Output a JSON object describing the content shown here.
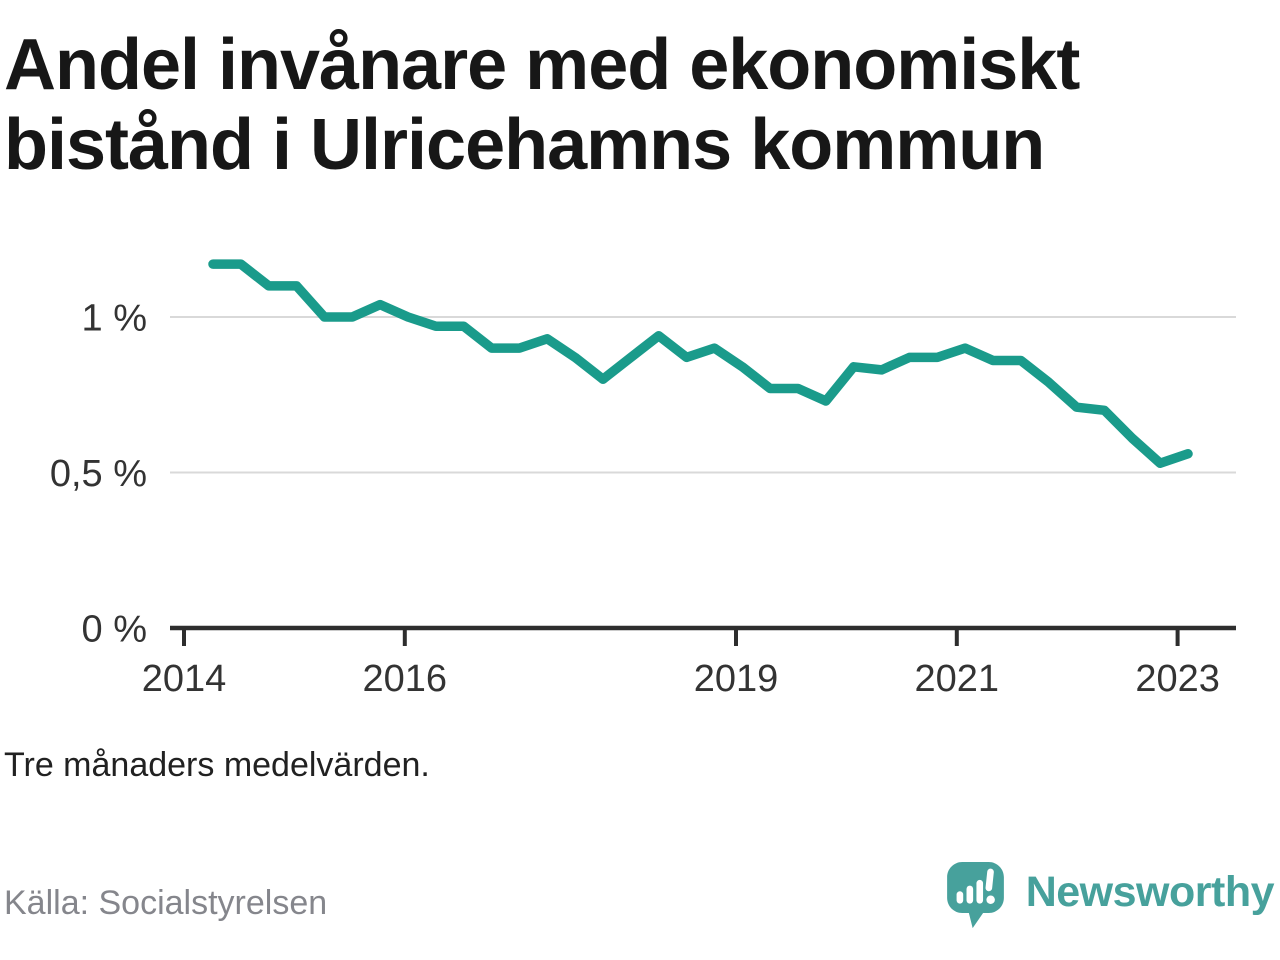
{
  "header": {
    "title": "Andel invånare med ekonomiskt bistånd i Ulricehamns kommun"
  },
  "chart_data": {
    "type": "line",
    "title": "Andel invånare med ekonomiskt bistånd i Ulricehamns kommun",
    "unit": "%",
    "grid": "horizontal",
    "legend": "none",
    "line_color": "#1a9b8b",
    "ylim": [
      0,
      1.3
    ],
    "xlim": [
      "2014",
      "2023"
    ],
    "categories": [
      "2014-03",
      "2014-06",
      "2014-09",
      "2014-12",
      "2015-03",
      "2015-06",
      "2015-09",
      "2015-12",
      "2016-03",
      "2016-06",
      "2016-09",
      "2016-12",
      "2017-03",
      "2017-06",
      "2017-09",
      "2017-12",
      "2018-03",
      "2018-06",
      "2018-09",
      "2018-12",
      "2019-03",
      "2019-06",
      "2019-09",
      "2019-12",
      "2020-03",
      "2020-06",
      "2020-09",
      "2020-12",
      "2021-03",
      "2021-06",
      "2021-09",
      "2021-12",
      "2022-03",
      "2022-06",
      "2022-09",
      "2022-12"
    ],
    "series": [
      {
        "name": "Andel invånare med ekonomiskt bistånd",
        "values": [
          1.17,
          1.17,
          1.1,
          1.1,
          1.0,
          1.0,
          1.04,
          1.0,
          0.97,
          0.97,
          0.9,
          0.9,
          0.93,
          0.87,
          0.8,
          0.87,
          0.94,
          0.87,
          0.9,
          0.84,
          0.77,
          0.77,
          0.73,
          0.84,
          0.83,
          0.87,
          0.87,
          0.9,
          0.86,
          0.86,
          0.79,
          0.71,
          0.7,
          0.61,
          0.53,
          0.56
        ]
      }
    ],
    "yticks": [
      {
        "value": 1,
        "label": "1 %"
      },
      {
        "value": 0.5,
        "label": "0,5 %"
      },
      {
        "value": 0,
        "label": "0 %"
      }
    ],
    "xticks": [
      {
        "value": 2014,
        "label": "2014"
      },
      {
        "value": 2016,
        "label": "2016"
      },
      {
        "value": 2019,
        "label": "2019"
      },
      {
        "value": 2021,
        "label": "2021"
      },
      {
        "value": 2023,
        "label": "2023"
      }
    ]
  },
  "footer": {
    "note": "Tre månaders medelvärden.",
    "source": "Källa: Socialstyrelsen"
  },
  "branding": {
    "wordmark": "Newsworthy",
    "color": "#47a19c"
  }
}
